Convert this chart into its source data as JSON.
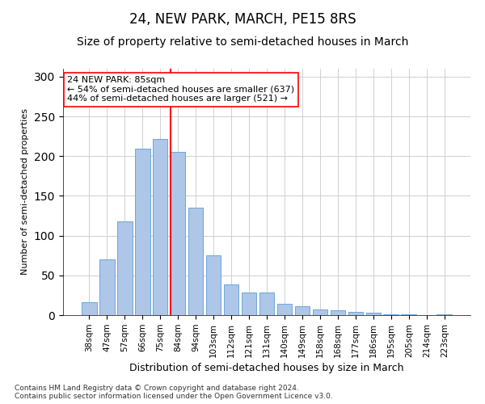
{
  "title": "24, NEW PARK, MARCH, PE15 8RS",
  "subtitle": "Size of property relative to semi-detached houses in March",
  "xlabel": "Distribution of semi-detached houses by size in March",
  "ylabel": "Number of semi-detached properties",
  "categories": [
    "38sqm",
    "47sqm",
    "57sqm",
    "66sqm",
    "75sqm",
    "84sqm",
    "94sqm",
    "103sqm",
    "112sqm",
    "121sqm",
    "131sqm",
    "140sqm",
    "149sqm",
    "158sqm",
    "168sqm",
    "177sqm",
    "186sqm",
    "195sqm",
    "205sqm",
    "214sqm",
    "223sqm"
  ],
  "values": [
    16,
    70,
    118,
    209,
    222,
    205,
    135,
    75,
    39,
    28,
    28,
    14,
    11,
    7,
    6,
    4,
    3,
    1,
    1,
    0,
    1
  ],
  "bar_color": "#aec6e8",
  "bar_edge_color": "#5a9fd4",
  "vline_x": 4.575,
  "annotation_line1": "24 NEW PARK: 85sqm",
  "annotation_line2": "← 54% of semi-detached houses are smaller (637)",
  "annotation_line3": "44% of semi-detached houses are larger (521) →",
  "annotation_box_color": "white",
  "annotation_box_edge_color": "red",
  "vline_color": "red",
  "grid_color": "#d0d0d0",
  "footnote": "Contains HM Land Registry data © Crown copyright and database right 2024.\nContains public sector information licensed under the Open Government Licence v3.0.",
  "ylim": [
    0,
    310
  ],
  "title_fontsize": 12,
  "subtitle_fontsize": 10,
  "xlabel_fontsize": 9,
  "ylabel_fontsize": 8,
  "tick_fontsize": 7.5,
  "annotation_fontsize": 8,
  "footnote_fontsize": 6.5
}
